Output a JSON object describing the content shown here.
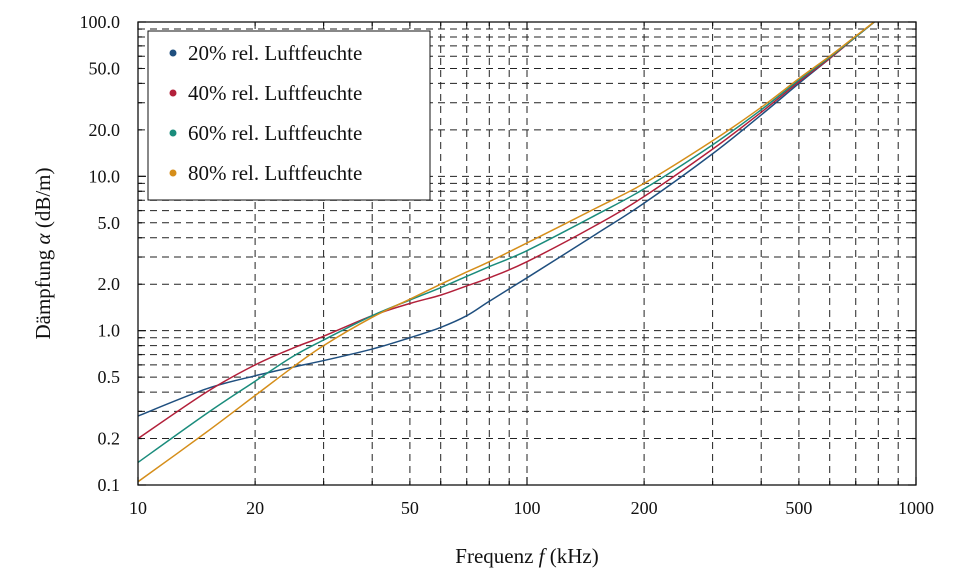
{
  "chart_data": {
    "type": "line",
    "x_scale": "log",
    "y_scale": "log",
    "xlabel_prefix": "Frequenz ",
    "xlabel_var": "f",
    "xlabel_suffix": " (kHz)",
    "ylabel_prefix": "Dämpfung ",
    "ylabel_var": "α",
    "ylabel_suffix": " (dB/m)",
    "xlim": [
      10,
      1000
    ],
    "ylim": [
      0.1,
      100
    ],
    "x_ticks": [
      10,
      20,
      50,
      100,
      200,
      500,
      1000
    ],
    "x_tick_labels": [
      "10",
      "20",
      "50",
      "100",
      "200",
      "500",
      "1000"
    ],
    "y_ticks": [
      0.1,
      0.2,
      0.5,
      1.0,
      2.0,
      5.0,
      10.0,
      20.0,
      50.0,
      100.0
    ],
    "y_tick_labels": [
      "0.1",
      "0.2",
      "0.5",
      "1.0",
      "2.0",
      "5.0",
      "10.0",
      "20.0",
      "50.0",
      "100.0"
    ],
    "grid": true,
    "legend_position": "top-left",
    "series": [
      {
        "name": "20% rel. Luftfeuchte",
        "color": "#1f4f7f",
        "x": [
          10,
          15,
          20,
          25,
          30,
          40,
          50,
          60,
          70,
          80,
          100,
          150,
          200,
          300,
          400,
          500,
          600,
          700,
          800
        ],
        "y": [
          0.28,
          0.42,
          0.51,
          0.58,
          0.64,
          0.76,
          0.9,
          1.05,
          1.25,
          1.55,
          2.2,
          4.2,
          6.7,
          14,
          25,
          40,
          58,
          80,
          105
        ]
      },
      {
        "name": "40% rel. Luftfeuchte",
        "color": "#b2203a",
        "x": [
          10,
          15,
          20,
          25,
          30,
          40,
          50,
          60,
          70,
          80,
          100,
          150,
          200,
          300,
          400,
          500,
          600,
          700,
          800
        ],
        "y": [
          0.2,
          0.4,
          0.6,
          0.77,
          0.92,
          1.25,
          1.5,
          1.7,
          1.95,
          2.2,
          2.8,
          4.8,
          7.4,
          15,
          26,
          41,
          58,
          80,
          105
        ]
      },
      {
        "name": "60% rel. Luftfeuchte",
        "color": "#1a8c7c",
        "x": [
          10,
          15,
          20,
          25,
          30,
          40,
          50,
          60,
          70,
          80,
          100,
          150,
          200,
          300,
          400,
          500,
          600,
          700,
          800
        ],
        "y": [
          0.14,
          0.29,
          0.47,
          0.68,
          0.87,
          1.25,
          1.58,
          1.9,
          2.25,
          2.6,
          3.3,
          5.6,
          8.3,
          16,
          27,
          42,
          59,
          80,
          105
        ]
      },
      {
        "name": "80% rel. Luftfeuchte",
        "color": "#d58e1a",
        "x": [
          10,
          15,
          20,
          25,
          30,
          40,
          50,
          60,
          70,
          80,
          100,
          150,
          200,
          300,
          400,
          500,
          600,
          700,
          800
        ],
        "y": [
          0.105,
          0.22,
          0.38,
          0.58,
          0.8,
          1.22,
          1.6,
          2.0,
          2.4,
          2.8,
          3.7,
          6.2,
          9.0,
          17,
          28,
          43,
          60,
          81,
          105
        ]
      }
    ]
  }
}
